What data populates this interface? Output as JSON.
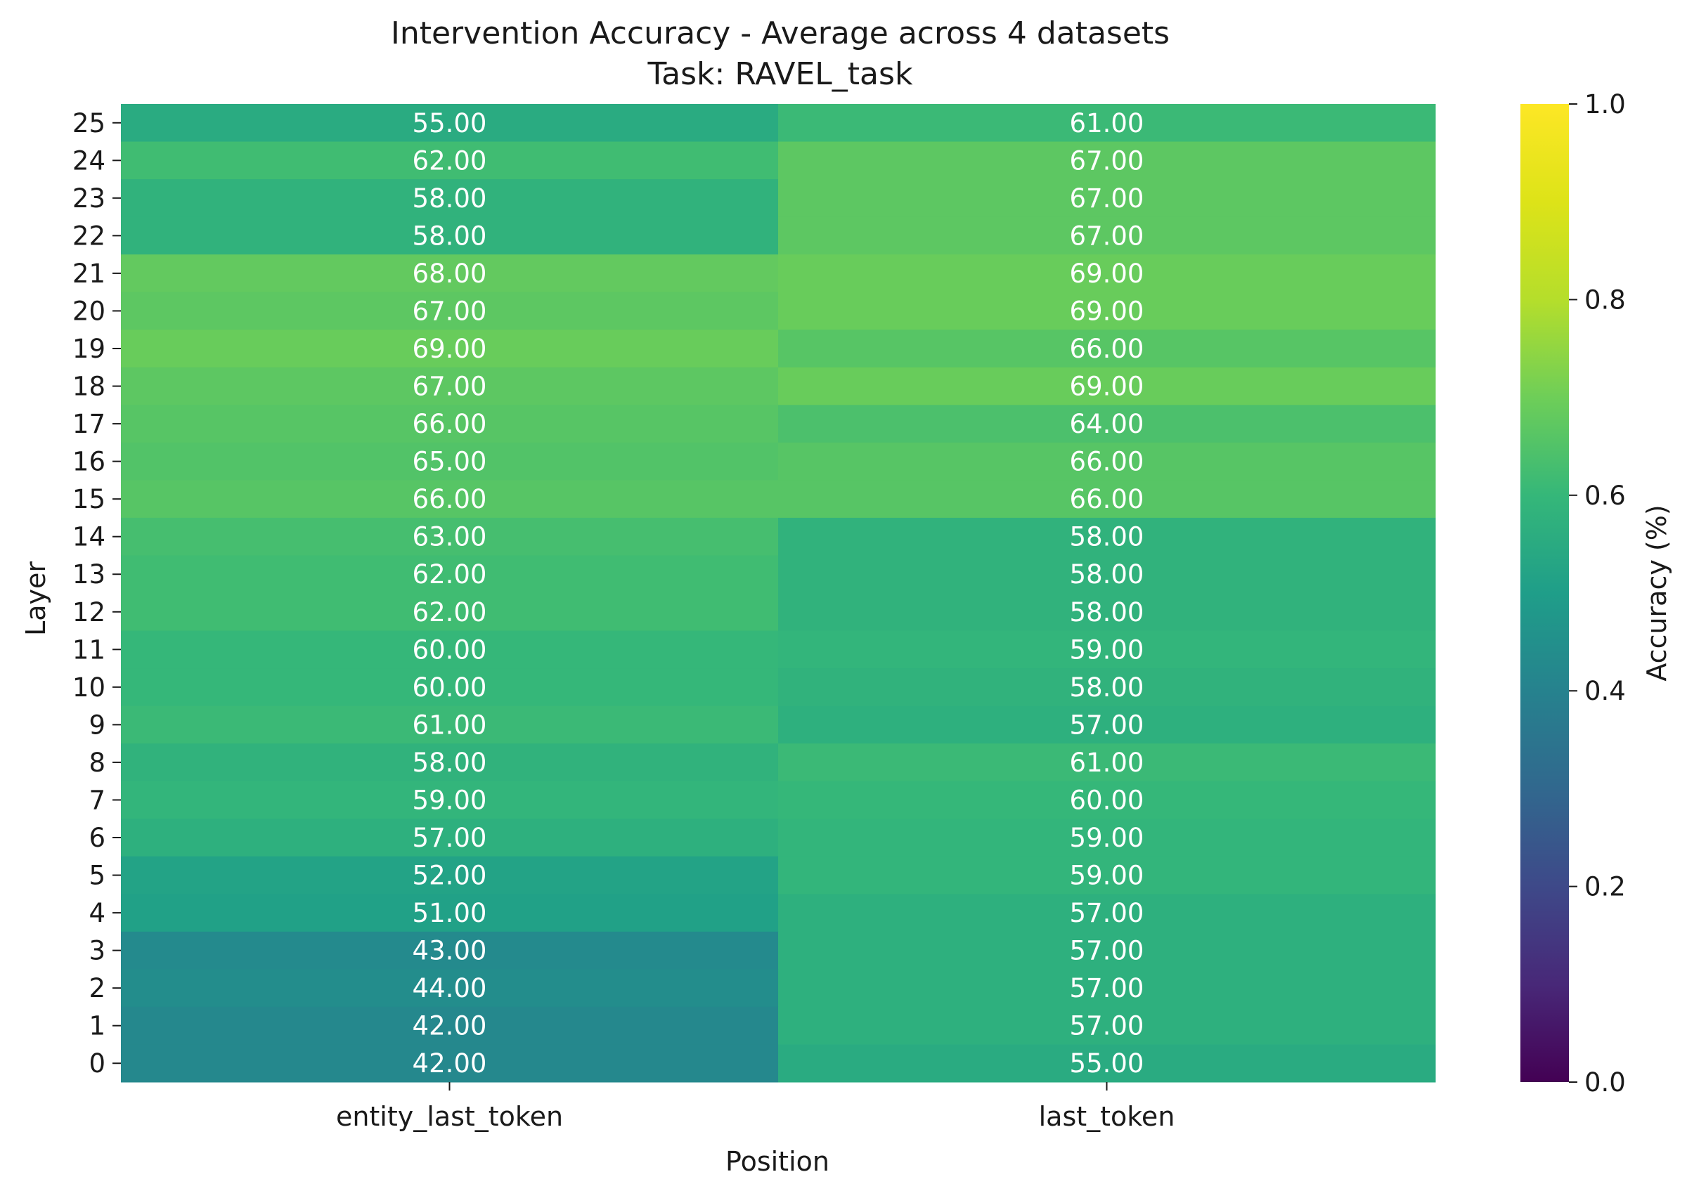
{
  "chart_data": {
    "type": "heatmap",
    "title": "Intervention Accuracy - Average across 4 datasets",
    "subtitle": "Task: RAVEL_task",
    "xlabel": "Position",
    "ylabel": "Layer",
    "x_categories": [
      "entity_last_token",
      "last_token"
    ],
    "y_categories": [
      "25",
      "24",
      "23",
      "22",
      "21",
      "20",
      "19",
      "18",
      "17",
      "16",
      "15",
      "14",
      "13",
      "12",
      "11",
      "10",
      "9",
      "8",
      "7",
      "6",
      "5",
      "4",
      "3",
      "2",
      "1",
      "0"
    ],
    "values": [
      [
        55,
        61
      ],
      [
        62,
        67
      ],
      [
        58,
        67
      ],
      [
        58,
        67
      ],
      [
        68,
        69
      ],
      [
        67,
        69
      ],
      [
        69,
        66
      ],
      [
        67,
        69
      ],
      [
        66,
        64
      ],
      [
        65,
        66
      ],
      [
        66,
        66
      ],
      [
        63,
        58
      ],
      [
        62,
        58
      ],
      [
        62,
        58
      ],
      [
        60,
        59
      ],
      [
        60,
        58
      ],
      [
        61,
        57
      ],
      [
        58,
        61
      ],
      [
        59,
        60
      ],
      [
        57,
        59
      ],
      [
        52,
        59
      ],
      [
        51,
        57
      ],
      [
        43,
        57
      ],
      [
        44,
        57
      ],
      [
        42,
        57
      ],
      [
        42,
        55
      ]
    ],
    "value_labels": [
      [
        "55.00",
        "61.00"
      ],
      [
        "62.00",
        "67.00"
      ],
      [
        "58.00",
        "67.00"
      ],
      [
        "58.00",
        "67.00"
      ],
      [
        "68.00",
        "69.00"
      ],
      [
        "67.00",
        "69.00"
      ],
      [
        "69.00",
        "66.00"
      ],
      [
        "67.00",
        "69.00"
      ],
      [
        "66.00",
        "64.00"
      ],
      [
        "65.00",
        "66.00"
      ],
      [
        "66.00",
        "66.00"
      ],
      [
        "63.00",
        "58.00"
      ],
      [
        "62.00",
        "58.00"
      ],
      [
        "62.00",
        "58.00"
      ],
      [
        "60.00",
        "59.00"
      ],
      [
        "60.00",
        "58.00"
      ],
      [
        "61.00",
        "57.00"
      ],
      [
        "58.00",
        "61.00"
      ],
      [
        "59.00",
        "60.00"
      ],
      [
        "57.00",
        "59.00"
      ],
      [
        "52.00",
        "59.00"
      ],
      [
        "51.00",
        "57.00"
      ],
      [
        "43.00",
        "57.00"
      ],
      [
        "44.00",
        "57.00"
      ],
      [
        "42.00",
        "57.00"
      ],
      [
        "42.00",
        "55.00"
      ]
    ],
    "colorbar": {
      "label": "Accuracy (%)",
      "range": [
        0.0,
        1.0
      ],
      "ticks": [
        "0.0",
        "0.2",
        "0.4",
        "0.6",
        "0.8",
        "1.0"
      ],
      "colormap": "viridis"
    }
  }
}
